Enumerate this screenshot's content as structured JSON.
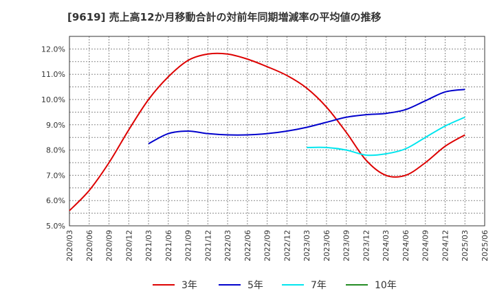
{
  "chart_data": {
    "type": "line",
    "title": "[9619]  売上高12か月移動合計の対前年同期増減率の平均値の推移",
    "xlabel": "",
    "ylabel": "",
    "ylim": [
      5.0,
      12.5
    ],
    "y_ticks": [
      "5.0%",
      "6.0%",
      "7.0%",
      "8.0%",
      "9.0%",
      "10.0%",
      "11.0%",
      "12.0%"
    ],
    "x_ticks": [
      "2020/03",
      "2020/06",
      "2020/09",
      "2020/12",
      "2021/03",
      "2021/06",
      "2021/09",
      "2021/12",
      "2022/03",
      "2022/06",
      "2022/09",
      "2022/12",
      "2023/03",
      "2023/06",
      "2023/09",
      "2023/12",
      "2024/03",
      "2024/06",
      "2024/09",
      "2024/12",
      "2025/03",
      "2025/06"
    ],
    "grid": true,
    "legend_position": "bottom",
    "series": [
      {
        "name": "3年",
        "color": "#dd0000",
        "x": [
          "2020/03",
          "2020/06",
          "2020/09",
          "2020/12",
          "2021/03",
          "2021/06",
          "2021/09",
          "2021/12",
          "2022/03",
          "2022/06",
          "2022/09",
          "2022/12",
          "2023/03",
          "2023/06",
          "2023/09",
          "2023/12",
          "2024/03",
          "2024/06",
          "2024/09",
          "2024/12",
          "2025/03"
        ],
        "values": [
          5.6,
          6.4,
          7.5,
          8.8,
          10.0,
          10.9,
          11.55,
          11.8,
          11.8,
          11.6,
          11.3,
          10.95,
          10.45,
          9.7,
          8.7,
          7.6,
          7.0,
          7.0,
          7.5,
          8.15,
          8.6
        ]
      },
      {
        "name": "5年",
        "color": "#0000cc",
        "x": [
          "2021/03",
          "2021/06",
          "2021/09",
          "2021/12",
          "2022/03",
          "2022/06",
          "2022/09",
          "2022/12",
          "2023/03",
          "2023/06",
          "2023/09",
          "2023/12",
          "2024/03",
          "2024/06",
          "2024/09",
          "2024/12",
          "2025/03"
        ],
        "values": [
          8.25,
          8.65,
          8.75,
          8.65,
          8.6,
          8.6,
          8.65,
          8.75,
          8.9,
          9.1,
          9.3,
          9.4,
          9.45,
          9.6,
          9.95,
          10.3,
          10.4
        ]
      },
      {
        "name": "7年",
        "color": "#00e5ee",
        "x": [
          "2023/03",
          "2023/06",
          "2023/09",
          "2023/12",
          "2024/03",
          "2024/06",
          "2024/09",
          "2024/12",
          "2025/03"
        ],
        "values": [
          8.1,
          8.1,
          8.0,
          7.8,
          7.85,
          8.05,
          8.5,
          8.95,
          9.3
        ]
      },
      {
        "name": "10年",
        "color": "#228b22",
        "x": [],
        "values": []
      }
    ]
  }
}
